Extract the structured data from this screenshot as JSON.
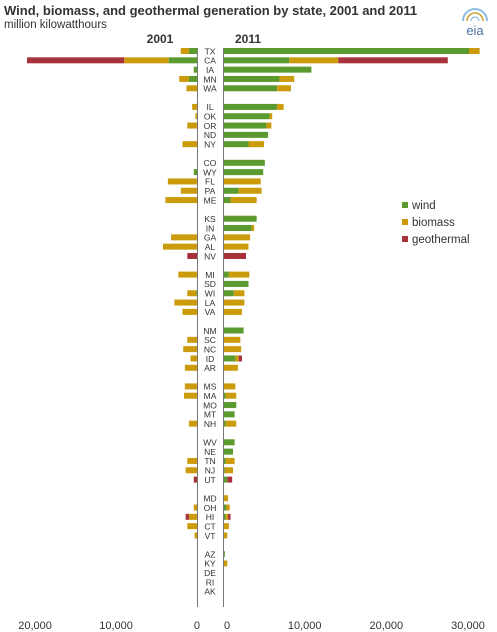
{
  "header": {
    "title": "Wind, biomass, and geothermal generation by state, 2001 and 2011",
    "subtitle": "million kilowatthours",
    "logo_text": "eia"
  },
  "chart_data": {
    "type": "bar",
    "orientation": "horizontal",
    "layout": "back-to-back stacked",
    "panels": [
      "2001",
      "2011"
    ],
    "categories": [
      "TX",
      "CA",
      "IA",
      "MN",
      "WA",
      "IL",
      "OK",
      "OR",
      "ND",
      "NY",
      "CO",
      "WY",
      "FL",
      "PA",
      "ME",
      "KS",
      "IN",
      "GA",
      "AL",
      "NV",
      "MI",
      "SD",
      "WI",
      "LA",
      "VA",
      "NM",
      "SC",
      "NC",
      "ID",
      "AR",
      "MS",
      "MA",
      "MO",
      "MT",
      "NH",
      "WV",
      "NE",
      "TN",
      "NJ",
      "UT",
      "MD",
      "OH",
      "HI",
      "CT",
      "VT",
      "AZ",
      "KY",
      "DE",
      "RI",
      "AK"
    ],
    "groups": [
      5,
      5,
      5,
      5,
      5,
      5,
      5,
      5,
      5,
      5
    ],
    "series": [
      {
        "name": "wind",
        "color": "#5b9a2f",
        "values_2001": [
          1000,
          3500,
          400,
          1000,
          0,
          0,
          0,
          0,
          0,
          0,
          0,
          400,
          0,
          0,
          0,
          0,
          0,
          0,
          0,
          0,
          0,
          0,
          100,
          0,
          0,
          0,
          0,
          0,
          0,
          0,
          0,
          0,
          0,
          0,
          0,
          0,
          0,
          0,
          0,
          0,
          0,
          0,
          0,
          0,
          0,
          0,
          0,
          0,
          0,
          0
        ],
        "values_2011": [
          30000,
          8000,
          10700,
          6800,
          6500,
          6500,
          5600,
          5200,
          5400,
          3000,
          5000,
          4800,
          0,
          1800,
          800,
          4000,
          3400,
          0,
          0,
          0,
          600,
          3000,
          1200,
          0,
          0,
          2400,
          0,
          0,
          1400,
          0,
          0,
          200,
          1500,
          1300,
          200,
          1300,
          1100,
          200,
          100,
          400,
          0,
          300,
          200,
          0,
          0,
          100,
          0,
          0,
          0,
          0
        ]
      },
      {
        "name": "biomass",
        "color": "#cc9b0c",
        "values_2001": [
          1000,
          5500,
          0,
          1200,
          1300,
          600,
          200,
          1200,
          0,
          1800,
          0,
          0,
          3600,
          2000,
          3900,
          0,
          0,
          3200,
          4200,
          0,
          2300,
          0,
          1100,
          2800,
          1800,
          0,
          1200,
          1700,
          800,
          1500,
          1500,
          1600,
          0,
          0,
          1000,
          0,
          0,
          1200,
          1400,
          0,
          0,
          400,
          1000,
          1200,
          300,
          0,
          0,
          0,
          0,
          0
        ]
      },
      {
        "name": "geothermal",
        "color": "#a8323c",
        "values_2001": [
          0,
          12000,
          0,
          0,
          0,
          0,
          0,
          0,
          0,
          0,
          0,
          0,
          0,
          0,
          0,
          0,
          0,
          0,
          0,
          1200,
          0,
          0,
          0,
          0,
          0,
          0,
          0,
          0,
          0,
          0,
          0,
          0,
          0,
          0,
          0,
          0,
          0,
          0,
          0,
          400,
          0,
          0,
          400,
          0,
          0,
          0,
          0,
          0,
          0,
          0
        ]
      }
    ],
    "biomass_values_2011": [
      1300,
      6000,
      0,
      1800,
      1700,
      800,
      300,
      600,
      0,
      1900,
      0,
      0,
      4500,
      2800,
      3200,
      0,
      300,
      3200,
      3000,
      0,
      2500,
      0,
      1300,
      2500,
      2200,
      0,
      2000,
      2100,
      400,
      1700,
      1400,
      1300,
      0,
      0,
      1300,
      0,
      0,
      1100,
      1000,
      0,
      500,
      400,
      300,
      600,
      400,
      0,
      400,
      0,
      0,
      0
    ],
    "geothermal_values_2011": [
      0,
      13400,
      0,
      0,
      0,
      0,
      0,
      0,
      0,
      0,
      0,
      0,
      0,
      0,
      0,
      0,
      0,
      0,
      0,
      2700,
      0,
      0,
      0,
      0,
      0,
      0,
      0,
      0,
      400,
      0,
      0,
      0,
      0,
      0,
      0,
      0,
      0,
      0,
      0,
      600,
      0,
      0,
      300,
      0,
      0,
      0,
      0,
      0,
      0,
      0
    ],
    "x_ticks_2001": [
      "20,000",
      "10,000",
      "0"
    ],
    "x_tick_values_2001": [
      20000,
      10000,
      0
    ],
    "x_ticks_2011": [
      "0",
      "10,000",
      "20,000",
      "30,000"
    ],
    "x_tick_values_2011": [
      0,
      10000,
      20000,
      30000
    ],
    "xlim_2001": [
      0,
      21000
    ],
    "xlim_2011": [
      0,
      31000
    ],
    "legend": {
      "position": "right",
      "entries": [
        "wind",
        "biomass",
        "geothermal"
      ]
    }
  }
}
